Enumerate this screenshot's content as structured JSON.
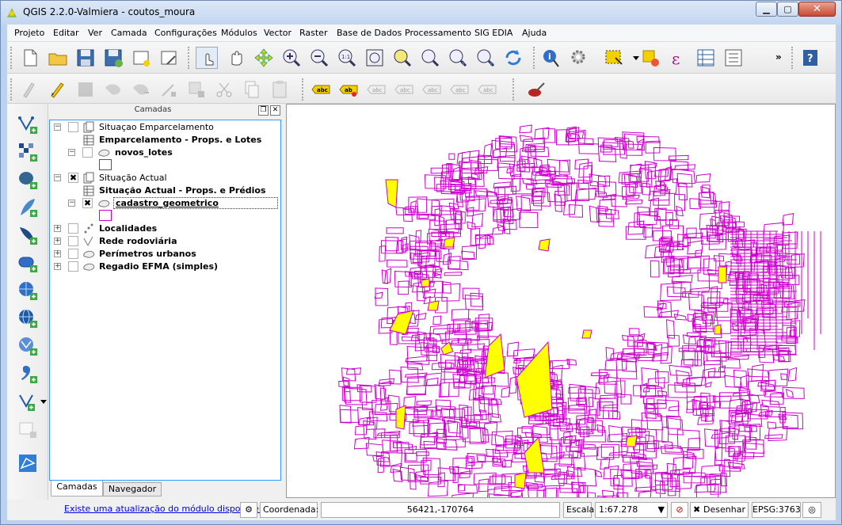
{
  "window": {
    "title": "QGIS 2.2.0-Valmiera - coutos_moura"
  },
  "menu": [
    "Projeto",
    "Editar",
    "Ver",
    "Camada",
    "Configurações",
    "Módulos",
    "Vector",
    "Raster",
    "Base de Dados",
    "Processamento",
    "SIG EDIA",
    "Ajuda"
  ],
  "toolbar": {
    "overflow_1": "»",
    "overflow_2": "»"
  },
  "layers_panel": {
    "title": "Camadas",
    "tree": [
      {
        "label": "Situaçao Emparcelamento",
        "type": "group",
        "checked": false
      },
      {
        "label": "Emparcelamento - Props. e Lotes",
        "type": "subgroup",
        "checked": false
      },
      {
        "label": "novos_lotes",
        "type": "layer",
        "checked": false
      },
      {
        "label": "Situação Actual",
        "type": "group",
        "checked": true
      },
      {
        "label": "Situação Actual - Props. e Prédios",
        "type": "subgroup",
        "checked": false
      },
      {
        "label": "cadastro_geometrico",
        "type": "layer",
        "checked": true
      },
      {
        "label": "Localidades",
        "type": "layer",
        "checked": false
      },
      {
        "label": "Rede rodoviária",
        "type": "layer",
        "checked": false
      },
      {
        "label": "Perímetros urbanos",
        "type": "layer",
        "checked": false
      },
      {
        "label": "Regadio EFMA (simples)",
        "type": "layer",
        "checked": false
      }
    ],
    "tabs": [
      "Camadas",
      "Navegador"
    ]
  },
  "map": {
    "line_color": "#cc00cc",
    "fill_color": "#ffff00"
  },
  "status": {
    "update_notice": "Existe uma atualização do módulo disponível",
    "coord_label": "Coordenada:",
    "coord_value": "56421,-170764",
    "scale_label": "Escala",
    "scale_value": "1:67.278",
    "render_label": "Desenhar",
    "crs": "EPSG:3763"
  }
}
